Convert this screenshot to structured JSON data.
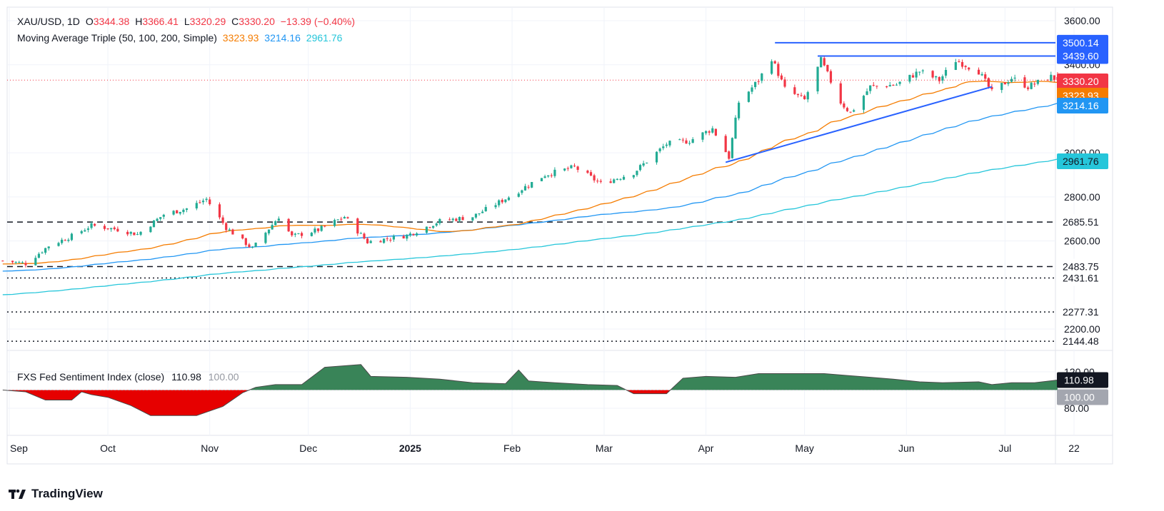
{
  "header": {
    "symbol": "XAU/USD, 1D",
    "o_label": "O",
    "o_value": "3344.38",
    "h_label": "H",
    "h_value": "3366.41",
    "l_label": "L",
    "l_value": "3320.29",
    "c_label": "C",
    "c_value": "3330.20",
    "change": "−13.39 (−0.40%)",
    "ma_title": "Moving Average Triple (50, 100, 200, Simple)",
    "ma50_value": "3323.93",
    "ma100_value": "3214.16",
    "ma200_value": "2961.76"
  },
  "indicator": {
    "title": "FXS Fed Sentiment Index (close)",
    "value": "110.98",
    "ref_value": "100.00",
    "axis_ticks": [
      "120.00",
      "80.00"
    ],
    "badge_value": "110.98",
    "badge_ref": "100.00"
  },
  "branding": {
    "name": "TradingView"
  },
  "colors": {
    "up": "#22ab94",
    "down": "#f23645",
    "ma50": "#f57c00",
    "ma100": "#2196f3",
    "ma200": "#26c6da",
    "trend": "#2962ff",
    "sent_pos": "#2e7d4f",
    "sent_neg": "#e60000",
    "price_line": "#f23645"
  },
  "chart_data": [
    {
      "type": "candlestick",
      "title": "XAU/USD, 1D",
      "x_ticks": [
        "Sep",
        "Oct",
        "Nov",
        "Dec",
        "2025",
        "Feb",
        "Mar",
        "Apr",
        "May",
        "Jun",
        "Jul",
        "22"
      ],
      "y_ticks": [
        "3600.00",
        "3400.00",
        "3000.00",
        "2800.00",
        "2600.00",
        "2200.00"
      ],
      "ylim": [
        2100,
        3650
      ],
      "price_labels": [
        "3500.14",
        "3439.60",
        "3330.20",
        "3323.93",
        "3214.16",
        "2961.76",
        "2685.51",
        "2483.75",
        "2431.61",
        "2277.31",
        "2144.48"
      ],
      "horizontal_levels": [
        {
          "value": 3500.14,
          "style": "solid"
        },
        {
          "value": 3439.6,
          "style": "solid"
        },
        {
          "value": 2685.51,
          "style": "dashed"
        },
        {
          "value": 2483.75,
          "style": "dashed"
        },
        {
          "value": 2431.61,
          "style": "dotted"
        },
        {
          "value": 2277.31,
          "style": "dotted"
        },
        {
          "value": 2144.48,
          "style": "dotted"
        }
      ],
      "trendline": {
        "from": [
          "2025-04-07",
          2957
        ],
        "to": [
          "2025-06-27",
          3300
        ]
      },
      "anchors": [
        [
          "2024-08-30",
          2510
        ],
        [
          "2024-09-06",
          2497
        ],
        [
          "2024-09-13",
          2578
        ],
        [
          "2024-09-20",
          2622
        ],
        [
          "2024-09-26",
          2670
        ],
        [
          "2024-10-04",
          2652
        ],
        [
          "2024-10-10",
          2630
        ],
        [
          "2024-10-18",
          2720
        ],
        [
          "2024-10-25",
          2747
        ],
        [
          "2024-10-31",
          2790
        ],
        [
          "2024-11-06",
          2660
        ],
        [
          "2024-11-14",
          2565
        ],
        [
          "2024-11-22",
          2710
        ],
        [
          "2024-11-26",
          2620
        ],
        [
          "2024-12-04",
          2650
        ],
        [
          "2024-12-12",
          2710
        ],
        [
          "2024-12-19",
          2595
        ],
        [
          "2024-12-31",
          2625
        ],
        [
          "2025-01-10",
          2690
        ],
        [
          "2025-01-20",
          2710
        ],
        [
          "2025-01-31",
          2800
        ],
        [
          "2025-02-11",
          2900
        ],
        [
          "2025-02-20",
          2935
        ],
        [
          "2025-02-28",
          2860
        ],
        [
          "2025-03-10",
          2910
        ],
        [
          "2025-03-20",
          3040
        ],
        [
          "2025-03-27",
          3055
        ],
        [
          "2025-04-03",
          3110
        ],
        [
          "2025-04-08",
          2980
        ],
        [
          "2025-04-11",
          3230
        ],
        [
          "2025-04-17",
          3330
        ],
        [
          "2025-04-21",
          3430
        ],
        [
          "2025-04-25",
          3290
        ],
        [
          "2025-05-01",
          3240
        ],
        [
          "2025-05-06",
          3420
        ],
        [
          "2025-05-12",
          3230
        ],
        [
          "2025-05-15",
          3180
        ],
        [
          "2025-05-21",
          3300
        ],
        [
          "2025-05-29",
          3310
        ],
        [
          "2025-06-05",
          3370
        ],
        [
          "2025-06-11",
          3330
        ],
        [
          "2025-06-16",
          3420
        ],
        [
          "2025-06-23",
          3370
        ],
        [
          "2025-06-27",
          3275
        ],
        [
          "2025-07-03",
          3340
        ],
        [
          "2025-07-08",
          3300
        ],
        [
          "2025-07-15",
          3345
        ],
        [
          "2025-07-17",
          3330
        ]
      ],
      "series": [
        {
          "name": "MA 50",
          "value": 3323.93
        },
        {
          "name": "MA 100",
          "value": 3214.16
        },
        {
          "name": "MA 200",
          "value": 2961.76
        }
      ],
      "last": {
        "open": 3344.38,
        "high": 3366.41,
        "low": 3320.29,
        "close": 3330.2
      }
    },
    {
      "type": "area",
      "title": "FXS Fed Sentiment Index (close)",
      "baseline": 100.0,
      "ylim": [
        70,
        135
      ],
      "y_ticks": [
        "120.00",
        "80.00"
      ],
      "values": [
        [
          "2024-08-30",
          100
        ],
        [
          "2024-09-06",
          98
        ],
        [
          "2024-09-12",
          89
        ],
        [
          "2024-09-20",
          89
        ],
        [
          "2024-09-23",
          98
        ],
        [
          "2024-09-26",
          95
        ],
        [
          "2024-10-01",
          92
        ],
        [
          "2024-10-08",
          83
        ],
        [
          "2024-10-14",
          72
        ],
        [
          "2024-10-21",
          72
        ],
        [
          "2024-10-28",
          72
        ],
        [
          "2024-11-05",
          82
        ],
        [
          "2024-11-11",
          97
        ],
        [
          "2024-11-15",
          103
        ],
        [
          "2024-11-21",
          106
        ],
        [
          "2024-11-29",
          106
        ],
        [
          "2024-12-06",
          125
        ],
        [
          "2024-12-17",
          128
        ],
        [
          "2024-12-20",
          115
        ],
        [
          "2024-12-31",
          114
        ],
        [
          "2025-01-10",
          112
        ],
        [
          "2025-01-20",
          108
        ],
        [
          "2025-01-30",
          107
        ],
        [
          "2025-02-03",
          122
        ],
        [
          "2025-02-06",
          110
        ],
        [
          "2025-02-14",
          108
        ],
        [
          "2025-02-24",
          106
        ],
        [
          "2025-03-05",
          105
        ],
        [
          "2025-03-10",
          96
        ],
        [
          "2025-03-20",
          96
        ],
        [
          "2025-03-25",
          113
        ],
        [
          "2025-04-01",
          115
        ],
        [
          "2025-04-10",
          114
        ],
        [
          "2025-04-17",
          118
        ],
        [
          "2025-04-28",
          118
        ],
        [
          "2025-05-07",
          118
        ],
        [
          "2025-05-14",
          116
        ],
        [
          "2025-05-21",
          114
        ],
        [
          "2025-05-28",
          112
        ],
        [
          "2025-06-05",
          109
        ],
        [
          "2025-06-12",
          108
        ],
        [
          "2025-06-23",
          109
        ],
        [
          "2025-06-27",
          106
        ],
        [
          "2025-07-03",
          108
        ],
        [
          "2025-07-10",
          108
        ],
        [
          "2025-07-17",
          110.98
        ]
      ]
    }
  ]
}
